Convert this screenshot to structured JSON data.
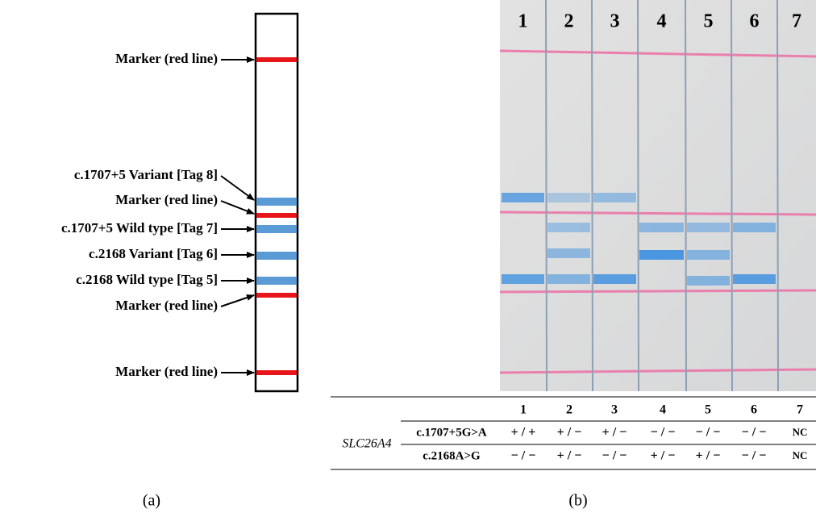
{
  "panel_a": {
    "caption": "(a)",
    "labels": [
      "Marker (red line)",
      "c.1707+5 Variant [Tag 8]",
      "Marker (red line)",
      "c.1707+5 Wild type [Tag 7]",
      "c.2168 Variant [Tag 6]",
      "c.2168 Wild type [Tag 5]",
      "Marker (red line)",
      "Marker (red line)"
    ]
  },
  "panel_b": {
    "caption": "(b)",
    "lanes": [
      "1",
      "2",
      "3",
      "4",
      "5",
      "6",
      "7"
    ],
    "table": {
      "header": [
        "1",
        "2",
        "3",
        "4",
        "5",
        "6",
        "7"
      ],
      "gene": "SLC26A4",
      "rows": [
        {
          "label": "c.1707+5G>A",
          "cells": [
            "+ / +",
            "+ / −",
            "+ / −",
            "− / −",
            "− / −",
            "− / −",
            "NC"
          ]
        },
        {
          "label": "c.2168A>G",
          "cells": [
            "− / −",
            "+ / −",
            "− / −",
            "+ / −",
            "+ / −",
            "− / −",
            "NC"
          ]
        }
      ]
    }
  }
}
